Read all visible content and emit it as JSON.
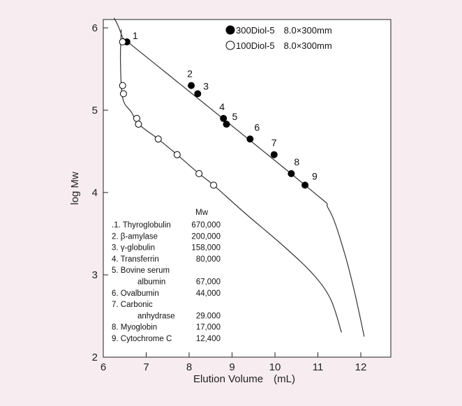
{
  "chart_data": {
    "type": "scatter",
    "xlabel": "Elution Volume　(mL)",
    "ylabel": "log Mw",
    "xlim": [
      6,
      12.4
    ],
    "ylim": [
      2,
      6.1
    ],
    "x_ticks": [
      "6",
      "7",
      "8",
      "9",
      "10",
      "11",
      "12"
    ],
    "y_ticks": [
      "2",
      "3",
      "4",
      "5",
      "6"
    ],
    "grid": false,
    "legend_position": "top-right",
    "series": [
      {
        "name": "300Diol-5　8.0×300mm",
        "marker": "filled-circle",
        "color": "#000000",
        "points": [
          {
            "label": "1",
            "x": 6.55,
            "y": 5.83
          },
          {
            "label": "2",
            "x": 8.05,
            "y": 5.3
          },
          {
            "label": "3",
            "x": 8.2,
            "y": 5.2
          },
          {
            "label": "4",
            "x": 8.8,
            "y": 4.9
          },
          {
            "label": "5",
            "x": 8.87,
            "y": 4.83
          },
          {
            "label": "6",
            "x": 9.42,
            "y": 4.65
          },
          {
            "label": "7",
            "x": 9.98,
            "y": 4.46
          },
          {
            "label": "8",
            "x": 10.38,
            "y": 4.23
          },
          {
            "label": "9",
            "x": 10.7,
            "y": 4.09
          }
        ],
        "curve": [
          {
            "x": 6.45,
            "y": 5.88
          },
          {
            "x": 10.7,
            "y": 4.09
          },
          {
            "x": 11.25,
            "y": 3.8
          },
          {
            "x": 11.6,
            "y": 3.3
          },
          {
            "x": 11.85,
            "y": 2.8
          },
          {
            "x": 12.08,
            "y": 2.25
          }
        ]
      },
      {
        "name": "100Diol-5　8.0×300mm",
        "marker": "open-circle",
        "color": "#000000",
        "points": [
          {
            "x": 6.45,
            "y": 5.83
          },
          {
            "x": 6.45,
            "y": 5.3
          },
          {
            "x": 6.47,
            "y": 5.2
          },
          {
            "x": 6.78,
            "y": 4.9
          },
          {
            "x": 6.82,
            "y": 4.83
          },
          {
            "x": 7.28,
            "y": 4.65
          },
          {
            "x": 7.72,
            "y": 4.46
          },
          {
            "x": 8.23,
            "y": 4.23
          },
          {
            "x": 8.57,
            "y": 4.09
          }
        ],
        "curve": [
          {
            "x": 6.42,
            "y": 5.98
          },
          {
            "x": 6.4,
            "y": 5.6
          },
          {
            "x": 6.45,
            "y": 5.15
          },
          {
            "x": 6.65,
            "y": 4.98
          },
          {
            "x": 6.85,
            "y": 4.82
          },
          {
            "x": 7.28,
            "y": 4.65
          },
          {
            "x": 7.72,
            "y": 4.46
          },
          {
            "x": 8.23,
            "y": 4.23
          },
          {
            "x": 8.57,
            "y": 4.09
          },
          {
            "x": 9.3,
            "y": 3.75
          },
          {
            "x": 10.2,
            "y": 3.35
          },
          {
            "x": 10.9,
            "y": 3.0
          },
          {
            "x": 11.3,
            "y": 2.7
          },
          {
            "x": 11.55,
            "y": 2.3
          }
        ]
      }
    ],
    "upper_curve_start": [
      {
        "x": 6.25,
        "y": 6.12
      },
      {
        "x": 6.35,
        "y": 6.02
      },
      {
        "x": 6.45,
        "y": 5.88
      }
    ],
    "legend": [
      {
        "marker": "filled-circle",
        "text": "300Diol-5　8.0×300mm"
      },
      {
        "marker": "open-circle",
        "text": "100Diol-5　8.0×300mm"
      }
    ],
    "table": {
      "header": "Mw",
      "rows": [
        {
          "name": ".1. Thyroglobulin",
          "mw": "670,000"
        },
        {
          "name": "2. β-amylase",
          "mw": "200,000"
        },
        {
          "name": "3. γ-globulin",
          "mw": "158,000"
        },
        {
          "name": "4. Transferrin",
          "mw": "80,000"
        },
        {
          "name": "5. Bovine serum",
          "mw": ""
        },
        {
          "name": "albumin",
          "mw": "67,000",
          "indent": true
        },
        {
          "name": "6. Ovalbumin",
          "mw": "44,000"
        },
        {
          "name": "7. Carbonic",
          "mw": ""
        },
        {
          "name": "anhydrase",
          "mw": "29.000",
          "indent": true
        },
        {
          "name": "8. Myoglobin",
          "mw": "17,000"
        },
        {
          "name": "9. Cytochrome C",
          "mw": "12,400"
        }
      ]
    }
  }
}
